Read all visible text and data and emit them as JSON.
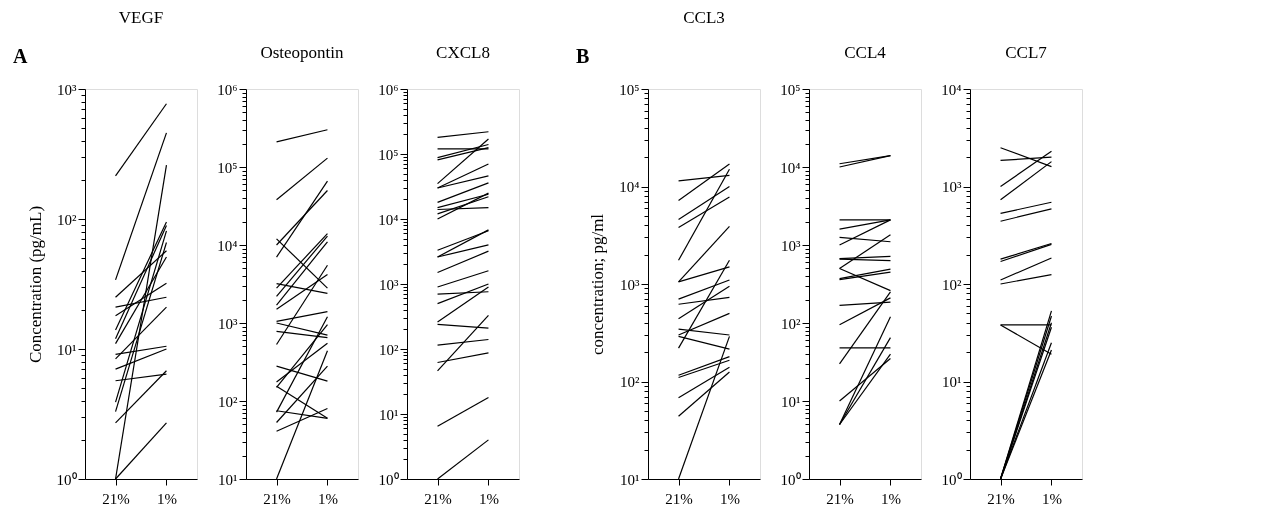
{
  "chart_data": [
    {
      "type": "line",
      "title": "VEGF",
      "ylabel": "Concentration (pg/mL)",
      "annotations": [
        "A"
      ],
      "log": true,
      "categories": [
        "21%",
        "1%"
      ],
      "ylim": [
        1,
        1000
      ],
      "yticks": [
        {
          "value": 1,
          "label": "10⁰"
        },
        {
          "value": 2,
          "label": null
        },
        {
          "value": 3,
          "label": null
        },
        {
          "value": 4,
          "label": null
        },
        {
          "value": 5,
          "label": null
        },
        {
          "value": 6,
          "label": null
        },
        {
          "value": 7,
          "label": null
        },
        {
          "value": 8,
          "label": null
        },
        {
          "value": 9,
          "label": null
        },
        {
          "value": 10,
          "label": "10¹"
        },
        {
          "value": 20,
          "label": null
        },
        {
          "value": 30,
          "label": null
        },
        {
          "value": 40,
          "label": null
        },
        {
          "value": 50,
          "label": null
        },
        {
          "value": 60,
          "label": null
        },
        {
          "value": 70,
          "label": null
        },
        {
          "value": 80,
          "label": null
        },
        {
          "value": 90,
          "label": null
        },
        {
          "value": 100,
          "label": "10²"
        },
        {
          "value": 200,
          "label": null
        },
        {
          "value": 300,
          "label": null
        },
        {
          "value": 400,
          "label": null
        },
        {
          "value": 500,
          "label": null
        },
        {
          "value": 600,
          "label": null
        },
        {
          "value": 700,
          "label": null
        },
        {
          "value": 800,
          "label": null
        },
        {
          "value": 900,
          "label": null
        },
        {
          "value": 1000,
          "label": "10³"
        }
      ],
      "series": [
        {
          "color": "#000000",
          "values": [
            215,
            770
          ]
        },
        {
          "color": "#000000",
          "values": [
            34,
            460
          ]
        },
        {
          "color": "#000000",
          "values": [
            1,
            260
          ]
        },
        {
          "color": "#000000",
          "values": [
            25,
            57
          ]
        },
        {
          "color": "#000000",
          "values": [
            21,
            25
          ]
        },
        {
          "color": "#000000",
          "values": [
            18,
            32
          ]
        },
        {
          "color": "#000000",
          "values": [
            14,
            95
          ]
        },
        {
          "color": "#000000",
          "values": [
            12,
            89
          ]
        },
        {
          "color": "#000000",
          "values": [
            11,
            51
          ]
        },
        {
          "color": "#000000",
          "values": [
            9.1,
            10.5
          ]
        },
        {
          "color": "#000000",
          "values": [
            8.4,
            21
          ]
        },
        {
          "color": "#000000",
          "values": [
            7,
            10
          ]
        },
        {
          "color": "#000000",
          "values": [
            5.7,
            6.4
          ]
        },
        {
          "color": "#000000",
          "values": [
            3.9,
            81
          ]
        },
        {
          "color": "#000000",
          "values": [
            3.3,
            66
          ]
        },
        {
          "color": "#000000",
          "values": [
            2.7,
            6.8
          ]
        },
        {
          "color": "#000000",
          "values": [
            1,
            2.7
          ]
        }
      ]
    },
    {
      "type": "line",
      "title": "Osteopontin",
      "log": true,
      "categories": [
        "21%",
        "1%"
      ],
      "ylim": [
        10,
        1000000
      ],
      "yticks": [
        {
          "value": 10,
          "label": "10¹"
        },
        {
          "value": 20,
          "label": null
        },
        {
          "value": 30,
          "label": null
        },
        {
          "value": 40,
          "label": null
        },
        {
          "value": 50,
          "label": null
        },
        {
          "value": 60,
          "label": null
        },
        {
          "value": 70,
          "label": null
        },
        {
          "value": 80,
          "label": null
        },
        {
          "value": 90,
          "label": null
        },
        {
          "value": 100,
          "label": "10²"
        },
        {
          "value": 200,
          "label": null
        },
        {
          "value": 300,
          "label": null
        },
        {
          "value": 400,
          "label": null
        },
        {
          "value": 500,
          "label": null
        },
        {
          "value": 600,
          "label": null
        },
        {
          "value": 700,
          "label": null
        },
        {
          "value": 800,
          "label": null
        },
        {
          "value": 900,
          "label": null
        },
        {
          "value": 1000,
          "label": "10³"
        },
        {
          "value": 2000,
          "label": null
        },
        {
          "value": 3000,
          "label": null
        },
        {
          "value": 4000,
          "label": null
        },
        {
          "value": 5000,
          "label": null
        },
        {
          "value": 6000,
          "label": null
        },
        {
          "value": 7000,
          "label": null
        },
        {
          "value": 8000,
          "label": null
        },
        {
          "value": 9000,
          "label": null
        },
        {
          "value": 10000,
          "label": "10⁴"
        },
        {
          "value": 20000,
          "label": null
        },
        {
          "value": 30000,
          "label": null
        },
        {
          "value": 40000,
          "label": null
        },
        {
          "value": 50000,
          "label": null
        },
        {
          "value": 60000,
          "label": null
        },
        {
          "value": 70000,
          "label": null
        },
        {
          "value": 80000,
          "label": null
        },
        {
          "value": 90000,
          "label": null
        },
        {
          "value": 100000,
          "label": "10⁵"
        },
        {
          "value": 200000,
          "label": null
        },
        {
          "value": 300000,
          "label": null
        },
        {
          "value": 400000,
          "label": null
        },
        {
          "value": 500000,
          "label": null
        },
        {
          "value": 600000,
          "label": null
        },
        {
          "value": 700000,
          "label": null
        },
        {
          "value": 800000,
          "label": null
        },
        {
          "value": 900000,
          "label": null
        },
        {
          "value": 1000000,
          "label": "10⁶"
        }
      ],
      "series": [
        {
          "color": "#000000",
          "values": [
            210000,
            300000
          ]
        },
        {
          "color": "#000000",
          "values": [
            38000,
            130000
          ]
        },
        {
          "color": "#000000",
          "values": [
            12000,
            2800
          ]
        },
        {
          "color": "#000000",
          "values": [
            10000,
            50000
          ]
        },
        {
          "color": "#000000",
          "values": [
            7000,
            66000
          ]
        },
        {
          "color": "#000000",
          "values": [
            3200,
            2400
          ]
        },
        {
          "color": "#000000",
          "values": [
            2800,
            14000
          ]
        },
        {
          "color": "#000000",
          "values": [
            2200,
            13000
          ]
        },
        {
          "color": "#000000",
          "values": [
            1700,
            11000
          ]
        },
        {
          "color": "#000000",
          "values": [
            1500,
            4200
          ]
        },
        {
          "color": "#000000",
          "values": [
            1050,
            1400
          ]
        },
        {
          "color": "#000000",
          "values": [
            1000,
            700
          ]
        },
        {
          "color": "#000000",
          "values": [
            780,
            650
          ]
        },
        {
          "color": "#000000",
          "values": [
            530,
            5500
          ]
        },
        {
          "color": "#000000",
          "values": [
            280,
            180
          ]
        },
        {
          "color": "#000000",
          "values": [
            175,
            550
          ]
        },
        {
          "color": "#000000",
          "values": [
            150,
            950
          ]
        },
        {
          "color": "#000000",
          "values": [
            155,
            60
          ]
        },
        {
          "color": "#000000",
          "values": [
            75,
            60
          ]
        },
        {
          "color": "#000000",
          "values": [
            72,
            1200
          ]
        },
        {
          "color": "#000000",
          "values": [
            53,
            280
          ]
        },
        {
          "color": "#000000",
          "values": [
            41,
            80
          ]
        },
        {
          "color": "#000000",
          "values": [
            10,
            440
          ]
        }
      ]
    },
    {
      "type": "line",
      "title": "CXCL8",
      "log": true,
      "categories": [
        "21%",
        "1%"
      ],
      "ylim": [
        1,
        1000000
      ],
      "yticks": [
        {
          "value": 1,
          "label": "10⁰"
        },
        {
          "value": 2,
          "label": null
        },
        {
          "value": 3,
          "label": null
        },
        {
          "value": 4,
          "label": null
        },
        {
          "value": 5,
          "label": null
        },
        {
          "value": 6,
          "label": null
        },
        {
          "value": 7,
          "label": null
        },
        {
          "value": 8,
          "label": null
        },
        {
          "value": 9,
          "label": null
        },
        {
          "value": 10,
          "label": "10¹"
        },
        {
          "value": 20,
          "label": null
        },
        {
          "value": 30,
          "label": null
        },
        {
          "value": 40,
          "label": null
        },
        {
          "value": 50,
          "label": null
        },
        {
          "value": 60,
          "label": null
        },
        {
          "value": 70,
          "label": null
        },
        {
          "value": 80,
          "label": null
        },
        {
          "value": 90,
          "label": null
        },
        {
          "value": 100,
          "label": "10²"
        },
        {
          "value": 200,
          "label": null
        },
        {
          "value": 300,
          "label": null
        },
        {
          "value": 400,
          "label": null
        },
        {
          "value": 500,
          "label": null
        },
        {
          "value": 600,
          "label": null
        },
        {
          "value": 700,
          "label": null
        },
        {
          "value": 800,
          "label": null
        },
        {
          "value": 900,
          "label": null
        },
        {
          "value": 1000,
          "label": "10³"
        },
        {
          "value": 2000,
          "label": null
        },
        {
          "value": 3000,
          "label": null
        },
        {
          "value": 4000,
          "label": null
        },
        {
          "value": 5000,
          "label": null
        },
        {
          "value": 6000,
          "label": null
        },
        {
          "value": 7000,
          "label": null
        },
        {
          "value": 8000,
          "label": null
        },
        {
          "value": 9000,
          "label": null
        },
        {
          "value": 10000,
          "label": "10⁴"
        },
        {
          "value": 20000,
          "label": null
        },
        {
          "value": 30000,
          "label": null
        },
        {
          "value": 40000,
          "label": null
        },
        {
          "value": 50000,
          "label": null
        },
        {
          "value": 60000,
          "label": null
        },
        {
          "value": 70000,
          "label": null
        },
        {
          "value": 80000,
          "label": null
        },
        {
          "value": 90000,
          "label": null
        },
        {
          "value": 100000,
          "label": "10⁵"
        },
        {
          "value": 200000,
          "label": null
        },
        {
          "value": 300000,
          "label": null
        },
        {
          "value": 400000,
          "label": null
        },
        {
          "value": 500000,
          "label": null
        },
        {
          "value": 600000,
          "label": null
        },
        {
          "value": 700000,
          "label": null
        },
        {
          "value": 800000,
          "label": null
        },
        {
          "value": 900000,
          "label": null
        },
        {
          "value": 1000000,
          "label": "10⁶"
        }
      ],
      "series": [
        {
          "color": "#000000",
          "values": [
            180000,
            220000
          ]
        },
        {
          "color": "#000000",
          "values": [
            120000,
            120000
          ]
        },
        {
          "color": "#000000",
          "values": [
            88000,
            140000
          ]
        },
        {
          "color": "#000000",
          "values": [
            81000,
            125000
          ]
        },
        {
          "color": "#000000",
          "values": [
            35000,
            170000
          ]
        },
        {
          "color": "#000000",
          "values": [
            30000,
            70000
          ]
        },
        {
          "color": "#000000",
          "values": [
            30000,
            46000
          ]
        },
        {
          "color": "#000000",
          "values": [
            18000,
            36000
          ]
        },
        {
          "color": "#000000",
          "values": [
            15000,
            24000
          ]
        },
        {
          "color": "#000000",
          "values": [
            14000,
            15000
          ]
        },
        {
          "color": "#000000",
          "values": [
            12000,
            22000
          ]
        },
        {
          "color": "#000000",
          "values": [
            10000,
            25000
          ]
        },
        {
          "color": "#000000",
          "values": [
            3300,
            6600
          ]
        },
        {
          "color": "#000000",
          "values": [
            2600,
            6800
          ]
        },
        {
          "color": "#000000",
          "values": [
            2600,
            4000
          ]
        },
        {
          "color": "#000000",
          "values": [
            1500,
            3200
          ]
        },
        {
          "color": "#000000",
          "values": [
            900,
            1600
          ]
        },
        {
          "color": "#000000",
          "values": [
            700,
            760
          ]
        },
        {
          "color": "#000000",
          "values": [
            500,
            1000
          ]
        },
        {
          "color": "#000000",
          "values": [
            260,
            900
          ]
        },
        {
          "color": "#000000",
          "values": [
            240,
            210
          ]
        },
        {
          "color": "#000000",
          "values": [
            115,
            140
          ]
        },
        {
          "color": "#000000",
          "values": [
            62,
            87
          ]
        },
        {
          "color": "#000000",
          "values": [
            46,
            330
          ]
        },
        {
          "color": "#000000",
          "values": [
            6.5,
            18
          ]
        },
        {
          "color": "#000000",
          "values": [
            1,
            4
          ]
        }
      ]
    },
    {
      "type": "line",
      "title": "CCL3",
      "ylabel": "concentration; pg/ml",
      "annotations": [
        "B"
      ],
      "log": true,
      "categories": [
        "21%",
        "1%"
      ],
      "ylim": [
        10,
        100000
      ],
      "yticks": [
        {
          "value": 10,
          "label": "10¹"
        },
        {
          "value": 20,
          "label": null
        },
        {
          "value": 30,
          "label": null
        },
        {
          "value": 40,
          "label": null
        },
        {
          "value": 50,
          "label": null
        },
        {
          "value": 60,
          "label": null
        },
        {
          "value": 70,
          "label": null
        },
        {
          "value": 80,
          "label": null
        },
        {
          "value": 90,
          "label": null
        },
        {
          "value": 100,
          "label": "10²"
        },
        {
          "value": 200,
          "label": null
        },
        {
          "value": 300,
          "label": null
        },
        {
          "value": 400,
          "label": null
        },
        {
          "value": 500,
          "label": null
        },
        {
          "value": 600,
          "label": null
        },
        {
          "value": 700,
          "label": null
        },
        {
          "value": 800,
          "label": null
        },
        {
          "value": 900,
          "label": null
        },
        {
          "value": 1000,
          "label": "10³"
        },
        {
          "value": 2000,
          "label": null
        },
        {
          "value": 3000,
          "label": null
        },
        {
          "value": 4000,
          "label": null
        },
        {
          "value": 5000,
          "label": null
        },
        {
          "value": 6000,
          "label": null
        },
        {
          "value": 7000,
          "label": null
        },
        {
          "value": 8000,
          "label": null
        },
        {
          "value": 9000,
          "label": null
        },
        {
          "value": 10000,
          "label": "10⁴"
        },
        {
          "value": 20000,
          "label": null
        },
        {
          "value": 30000,
          "label": null
        },
        {
          "value": 40000,
          "label": null
        },
        {
          "value": 50000,
          "label": null
        },
        {
          "value": 60000,
          "label": null
        },
        {
          "value": 70000,
          "label": null
        },
        {
          "value": 80000,
          "label": null
        },
        {
          "value": 90000,
          "label": null
        },
        {
          "value": 100000,
          "label": "10⁵"
        }
      ],
      "series": [
        {
          "color": "#000000",
          "values": [
            11400,
            13000
          ]
        },
        {
          "color": "#000000",
          "values": [
            7200,
            17000
          ]
        },
        {
          "color": "#000000",
          "values": [
            4600,
            10000
          ]
        },
        {
          "color": "#000000",
          "values": [
            3800,
            7800
          ]
        },
        {
          "color": "#000000",
          "values": [
            1750,
            15000
          ]
        },
        {
          "color": "#000000",
          "values": [
            1050,
            3900
          ]
        },
        {
          "color": "#000000",
          "values": [
            1050,
            1500
          ]
        },
        {
          "color": "#000000",
          "values": [
            700,
            1100
          ]
        },
        {
          "color": "#000000",
          "values": [
            620,
            730
          ]
        },
        {
          "color": "#000000",
          "values": [
            440,
            950
          ]
        },
        {
          "color": "#000000",
          "values": [
            345,
            300
          ]
        },
        {
          "color": "#000000",
          "values": [
            300,
            500
          ]
        },
        {
          "color": "#000000",
          "values": [
            290,
            215
          ]
        },
        {
          "color": "#000000",
          "values": [
            220,
            1750
          ]
        },
        {
          "color": "#000000",
          "values": [
            116,
            180
          ]
        },
        {
          "color": "#000000",
          "values": [
            110,
            165
          ]
        },
        {
          "color": "#000000",
          "values": [
            68,
            140
          ]
        },
        {
          "color": "#000000",
          "values": [
            44,
            125
          ]
        },
        {
          "color": "#000000",
          "values": [
            10,
            290
          ]
        }
      ]
    },
    {
      "type": "line",
      "title": "CCL4",
      "log": true,
      "categories": [
        "21%",
        "1%"
      ],
      "ylim": [
        1,
        100000
      ],
      "yticks": [
        {
          "value": 1,
          "label": "10⁰"
        },
        {
          "value": 2,
          "label": null
        },
        {
          "value": 3,
          "label": null
        },
        {
          "value": 4,
          "label": null
        },
        {
          "value": 5,
          "label": null
        },
        {
          "value": 6,
          "label": null
        },
        {
          "value": 7,
          "label": null
        },
        {
          "value": 8,
          "label": null
        },
        {
          "value": 9,
          "label": null
        },
        {
          "value": 10,
          "label": "10¹"
        },
        {
          "value": 20,
          "label": null
        },
        {
          "value": 30,
          "label": null
        },
        {
          "value": 40,
          "label": null
        },
        {
          "value": 50,
          "label": null
        },
        {
          "value": 60,
          "label": null
        },
        {
          "value": 70,
          "label": null
        },
        {
          "value": 80,
          "label": null
        },
        {
          "value": 90,
          "label": null
        },
        {
          "value": 100,
          "label": "10²"
        },
        {
          "value": 200,
          "label": null
        },
        {
          "value": 300,
          "label": null
        },
        {
          "value": 400,
          "label": null
        },
        {
          "value": 500,
          "label": null
        },
        {
          "value": 600,
          "label": null
        },
        {
          "value": 700,
          "label": null
        },
        {
          "value": 800,
          "label": null
        },
        {
          "value": 900,
          "label": null
        },
        {
          "value": 1000,
          "label": "10³"
        },
        {
          "value": 2000,
          "label": null
        },
        {
          "value": 3000,
          "label": null
        },
        {
          "value": 4000,
          "label": null
        },
        {
          "value": 5000,
          "label": null
        },
        {
          "value": 6000,
          "label": null
        },
        {
          "value": 7000,
          "label": null
        },
        {
          "value": 8000,
          "label": null
        },
        {
          "value": 9000,
          "label": null
        },
        {
          "value": 10000,
          "label": "10⁴"
        },
        {
          "value": 20000,
          "label": null
        },
        {
          "value": 30000,
          "label": null
        },
        {
          "value": 40000,
          "label": null
        },
        {
          "value": 50000,
          "label": null
        },
        {
          "value": 60000,
          "label": null
        },
        {
          "value": 70000,
          "label": null
        },
        {
          "value": 80000,
          "label": null
        },
        {
          "value": 90000,
          "label": null
        },
        {
          "value": 100000,
          "label": "10⁵"
        }
      ],
      "series": [
        {
          "color": "#000000",
          "values": [
            11000,
            14000
          ]
        },
        {
          "color": "#000000",
          "values": [
            10000,
            14000
          ]
        },
        {
          "color": "#000000",
          "values": [
            2100,
            2100
          ]
        },
        {
          "color": "#000000",
          "values": [
            1600,
            2100
          ]
        },
        {
          "color": "#000000",
          "values": [
            1250,
            1100
          ]
        },
        {
          "color": "#000000",
          "values": [
            1000,
            2100
          ]
        },
        {
          "color": "#000000",
          "values": [
            670,
            715
          ]
        },
        {
          "color": "#000000",
          "values": [
            660,
            630
          ]
        },
        {
          "color": "#000000",
          "values": [
            500,
            260
          ]
        },
        {
          "color": "#000000",
          "values": [
            500,
            1350
          ]
        },
        {
          "color": "#000000",
          "values": [
            370,
            490
          ]
        },
        {
          "color": "#000000",
          "values": [
            360,
            450
          ]
        },
        {
          "color": "#000000",
          "values": [
            168,
            185
          ]
        },
        {
          "color": "#000000",
          "values": [
            95,
            210
          ]
        },
        {
          "color": "#000000",
          "values": [
            48,
            48
          ]
        },
        {
          "color": "#000000",
          "values": [
            30,
            250
          ]
        },
        {
          "color": "#000000",
          "values": [
            10,
            35
          ]
        },
        {
          "color": "#000000",
          "values": [
            5,
            120
          ]
        },
        {
          "color": "#000000",
          "values": [
            5,
            65
          ]
        },
        {
          "color": "#000000",
          "values": [
            5,
            40
          ]
        }
      ]
    },
    {
      "type": "line",
      "title": "CCL7",
      "log": true,
      "categories": [
        "21%",
        "1%"
      ],
      "ylim": [
        1,
        10000
      ],
      "yticks": [
        {
          "value": 1,
          "label": "10⁰"
        },
        {
          "value": 2,
          "label": null
        },
        {
          "value": 3,
          "label": null
        },
        {
          "value": 4,
          "label": null
        },
        {
          "value": 5,
          "label": null
        },
        {
          "value": 6,
          "label": null
        },
        {
          "value": 7,
          "label": null
        },
        {
          "value": 8,
          "label": null
        },
        {
          "value": 9,
          "label": null
        },
        {
          "value": 10,
          "label": "10¹"
        },
        {
          "value": 20,
          "label": null
        },
        {
          "value": 30,
          "label": null
        },
        {
          "value": 40,
          "label": null
        },
        {
          "value": 50,
          "label": null
        },
        {
          "value": 60,
          "label": null
        },
        {
          "value": 70,
          "label": null
        },
        {
          "value": 80,
          "label": null
        },
        {
          "value": 90,
          "label": null
        },
        {
          "value": 100,
          "label": "10²"
        },
        {
          "value": 200,
          "label": null
        },
        {
          "value": 300,
          "label": null
        },
        {
          "value": 400,
          "label": null
        },
        {
          "value": 500,
          "label": null
        },
        {
          "value": 600,
          "label": null
        },
        {
          "value": 700,
          "label": null
        },
        {
          "value": 800,
          "label": null
        },
        {
          "value": 900,
          "label": null
        },
        {
          "value": 1000,
          "label": "10³"
        },
        {
          "value": 2000,
          "label": null
        },
        {
          "value": 3000,
          "label": null
        },
        {
          "value": 4000,
          "label": null
        },
        {
          "value": 5000,
          "label": null
        },
        {
          "value": 6000,
          "label": null
        },
        {
          "value": 7000,
          "label": null
        },
        {
          "value": 8000,
          "label": null
        },
        {
          "value": 9000,
          "label": null
        },
        {
          "value": 10000,
          "label": "10⁴"
        }
      ],
      "series": [
        {
          "color": "#000000",
          "values": [
            2500,
            1600
          ]
        },
        {
          "color": "#000000",
          "values": [
            1850,
            2000
          ]
        },
        {
          "color": "#000000",
          "values": [
            1000,
            2300
          ]
        },
        {
          "color": "#000000",
          "values": [
            730,
            1800
          ]
        },
        {
          "color": "#000000",
          "values": [
            530,
            690
          ]
        },
        {
          "color": "#000000",
          "values": [
            440,
            590
          ]
        },
        {
          "color": "#000000",
          "values": [
            180,
            260
          ]
        },
        {
          "color": "#000000",
          "values": [
            170,
            255
          ]
        },
        {
          "color": "#000000",
          "values": [
            110,
            185
          ]
        },
        {
          "color": "#000000",
          "values": [
            100,
            125
          ]
        },
        {
          "color": "#000000",
          "values": [
            38,
            38
          ]
        },
        {
          "color": "#000000",
          "values": [
            38,
            19
          ]
        },
        {
          "color": "#000000",
          "values": [
            1,
            53
          ]
        },
        {
          "color": "#000000",
          "values": [
            1,
            47
          ]
        },
        {
          "color": "#000000",
          "values": [
            1,
            40
          ]
        },
        {
          "color": "#000000",
          "values": [
            1,
            36
          ]
        },
        {
          "color": "#000000",
          "values": [
            1,
            25
          ]
        },
        {
          "color": "#000000",
          "values": [
            1,
            21
          ]
        }
      ]
    }
  ]
}
